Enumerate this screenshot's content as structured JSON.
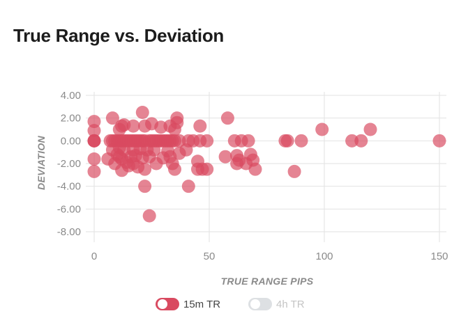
{
  "title": "True Range vs. Deviation",
  "colors": {
    "series_active": "#d94a60",
    "series_inactive": "#dde0e3",
    "legend_active_text": "#444444",
    "legend_inactive_text": "#c4c4c4"
  },
  "legend": [
    {
      "label": "15m TR",
      "active": true
    },
    {
      "label": "4h TR",
      "active": false
    }
  ],
  "chart_data": {
    "type": "scatter",
    "title": "True Range vs. Deviation",
    "xlabel": "TRUE RANGE PIPS",
    "ylabel": "DEVIATION",
    "xlim": [
      0,
      150
    ],
    "ylim": [
      -8,
      4
    ],
    "x_ticks": [
      "0",
      "50",
      "100",
      "150"
    ],
    "y_ticks": [
      "4.00",
      "2.00",
      "0.00",
      "-2.00",
      "-4.00",
      "-6.00",
      "-8.00"
    ],
    "grid": true,
    "legend_position": "bottom",
    "series": [
      {
        "name": "15m TR",
        "points": [
          [
            0,
            1.7
          ],
          [
            0,
            0.9
          ],
          [
            0,
            0
          ],
          [
            0,
            0
          ],
          [
            0,
            0
          ],
          [
            0,
            -1.6
          ],
          [
            0,
            -2.7
          ],
          [
            6,
            -1.6
          ],
          [
            7,
            0
          ],
          [
            8,
            2.0
          ],
          [
            8,
            0
          ],
          [
            8,
            -0.8
          ],
          [
            9,
            0
          ],
          [
            9,
            -2.0
          ],
          [
            10,
            0
          ],
          [
            10,
            -1.2
          ],
          [
            11,
            1.0
          ],
          [
            11,
            0
          ],
          [
            11,
            -0.6
          ],
          [
            11,
            -1.4
          ],
          [
            12,
            1.3
          ],
          [
            12,
            0
          ],
          [
            12,
            -1.6
          ],
          [
            12,
            -2.6
          ],
          [
            13,
            1.4
          ],
          [
            13,
            0
          ],
          [
            13,
            -0.8
          ],
          [
            14,
            0
          ],
          [
            14,
            -1.9
          ],
          [
            15,
            0
          ],
          [
            15,
            -2.2
          ],
          [
            16,
            0
          ],
          [
            16,
            -1.4
          ],
          [
            17,
            1.3
          ],
          [
            17,
            0
          ],
          [
            17,
            -0.8
          ],
          [
            17,
            -2.0
          ],
          [
            18,
            0
          ],
          [
            18,
            -1.3
          ],
          [
            19,
            0
          ],
          [
            19,
            -2.3
          ],
          [
            20,
            0
          ],
          [
            20,
            -0.7
          ],
          [
            21,
            2.5
          ],
          [
            21,
            0
          ],
          [
            21,
            -1.5
          ],
          [
            22,
            1.3
          ],
          [
            22,
            0
          ],
          [
            22,
            -2.5
          ],
          [
            23,
            -0.8
          ],
          [
            24,
            0
          ],
          [
            24,
            -1.4
          ],
          [
            25,
            1.5
          ],
          [
            25,
            0
          ],
          [
            26,
            0
          ],
          [
            26,
            -0.8
          ],
          [
            27,
            0
          ],
          [
            27,
            -2.0
          ],
          [
            28,
            0
          ],
          [
            29,
            1.2
          ],
          [
            29,
            0
          ],
          [
            30,
            0
          ],
          [
            30,
            -1.5
          ],
          [
            31,
            0
          ],
          [
            32,
            0
          ],
          [
            32,
            -0.9
          ],
          [
            33,
            1.3
          ],
          [
            33,
            0
          ],
          [
            33,
            -1.4
          ],
          [
            34,
            0
          ],
          [
            34,
            -2.0
          ],
          [
            35,
            1.0
          ],
          [
            35,
            0
          ],
          [
            35,
            -2.5
          ],
          [
            36,
            2.0
          ],
          [
            36,
            1.6
          ],
          [
            37,
            0
          ],
          [
            37,
            -1.1
          ],
          [
            22,
            -4.0
          ],
          [
            24,
            -6.6
          ],
          [
            40,
            -0.8
          ],
          [
            41,
            0
          ],
          [
            41,
            -4.0
          ],
          [
            43,
            0
          ],
          [
            45,
            -1.8
          ],
          [
            45,
            -2.5
          ],
          [
            46,
            1.3
          ],
          [
            46,
            0
          ],
          [
            47,
            -2.5
          ],
          [
            49,
            0
          ],
          [
            49,
            -2.5
          ],
          [
            57,
            -1.4
          ],
          [
            58,
            2.0
          ],
          [
            61,
            0
          ],
          [
            62,
            -1.3
          ],
          [
            62,
            -2.0
          ],
          [
            63,
            -1.7
          ],
          [
            64,
            0
          ],
          [
            66,
            -2.0
          ],
          [
            67,
            0
          ],
          [
            68,
            -1.2
          ],
          [
            69,
            -1.7
          ],
          [
            70,
            -2.5
          ],
          [
            83,
            0
          ],
          [
            84,
            0
          ],
          [
            87,
            -2.7
          ],
          [
            90,
            0
          ],
          [
            99,
            1.0
          ],
          [
            112,
            0
          ],
          [
            116,
            0
          ],
          [
            120,
            1.0
          ],
          [
            150,
            0
          ]
        ]
      },
      {
        "name": "4h TR",
        "points": []
      }
    ]
  }
}
